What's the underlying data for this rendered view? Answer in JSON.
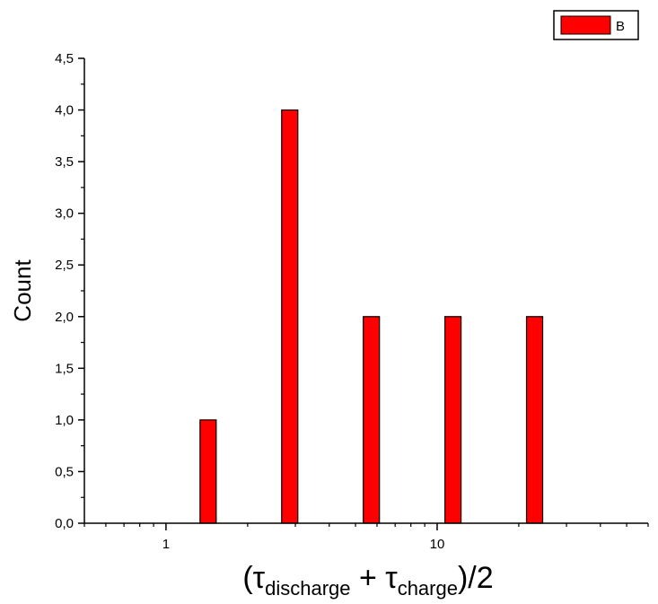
{
  "chart_data": {
    "type": "bar",
    "x_scale": "log",
    "x_tick_labels": [
      "1",
      "10"
    ],
    "y_tick_labels": [
      "0,0",
      "0,5",
      "1,0",
      "1,5",
      "2,0",
      "2,5",
      "3,0",
      "3,5",
      "4,0",
      "4,5"
    ],
    "ylim": [
      0,
      4.5
    ],
    "xlim": [
      0.5,
      60
    ],
    "xlabel": {
      "open": "(τ",
      "sub1": "discharge",
      "mid": " + τ",
      "sub2": "charge",
      "close": ")/2"
    },
    "ylabel": "Count",
    "grid": false,
    "legend_position": "top-right",
    "series": [
      {
        "name": "B",
        "color": "#ff0000",
        "x": [
          1.43,
          2.86,
          5.72,
          11.44,
          22.88
        ],
        "values": [
          1,
          4,
          2,
          2,
          2
        ]
      }
    ]
  }
}
